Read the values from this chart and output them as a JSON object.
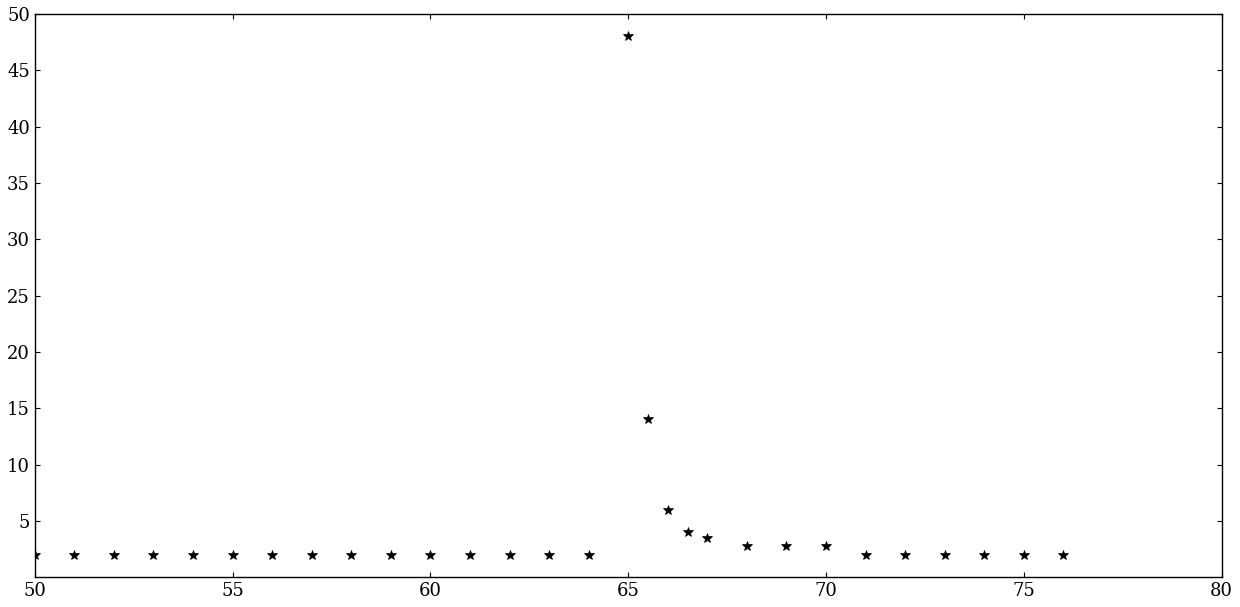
{
  "x": [
    50,
    51,
    52,
    53,
    54,
    55,
    56,
    57,
    58,
    59,
    60,
    61,
    62,
    63,
    64,
    65,
    65.5,
    66,
    66.5,
    67,
    68,
    69,
    70,
    71,
    72,
    73,
    74,
    75,
    76
  ],
  "y": [
    2.0,
    2.0,
    2.0,
    2.0,
    2.0,
    2.0,
    2.0,
    2.0,
    2.0,
    2.0,
    2.0,
    2.0,
    2.0,
    2.0,
    2.0,
    48.0,
    14.0,
    6.0,
    4.0,
    3.5,
    2.8,
    2.8,
    2.8,
    2.0,
    2.0,
    2.0,
    2.0,
    2.0,
    2.0
  ],
  "xlim": [
    50,
    80
  ],
  "ylim": [
    0,
    50
  ],
  "xticks": [
    50,
    55,
    60,
    65,
    70,
    75,
    80
  ],
  "yticks": [
    5,
    10,
    15,
    20,
    25,
    30,
    35,
    40,
    45,
    50
  ],
  "marker": "*",
  "marker_color": "black",
  "marker_size": 7,
  "background_color": "white",
  "tick_labelsize": 13,
  "linewidth": 1.0
}
